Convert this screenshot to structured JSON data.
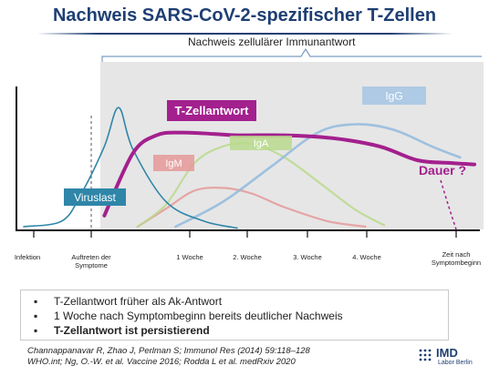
{
  "title": "Nachweis SARS-CoV-2-spezifischer T-Zellen",
  "subtitle": "Nachweis zellulärer Immunantwort",
  "chart_data": {
    "type": "line",
    "x_ticks": [
      "Infektion",
      "Auftreten der Symptome",
      "1 Woche",
      "2. Woche",
      "3. Woche",
      "4. Woche",
      "Zeit nach Symptombeginn"
    ],
    "series": [
      {
        "name": "Viruslast",
        "color": "#2f86a8",
        "points": [
          [
            0,
            2
          ],
          [
            0.8,
            6
          ],
          [
            1.2,
            25
          ],
          [
            1.7,
            60
          ],
          [
            2.0,
            88
          ],
          [
            2.3,
            58
          ],
          [
            3.0,
            20
          ],
          [
            3.8,
            6
          ],
          [
            4.5,
            1
          ]
        ]
      },
      {
        "name": "T-Zellantwort",
        "color": "#a3208e",
        "points": [
          [
            1.7,
            10
          ],
          [
            2.3,
            55
          ],
          [
            2.8,
            68
          ],
          [
            3.3,
            70
          ],
          [
            4.0,
            69
          ],
          [
            4.5,
            68
          ],
          [
            5.5,
            68
          ],
          [
            6.5,
            66
          ],
          [
            7.5,
            60
          ],
          [
            8.3,
            50
          ],
          [
            9.0,
            48
          ],
          [
            9.5,
            47
          ]
        ]
      },
      {
        "name": "IgM",
        "color": "#e59898",
        "points": [
          [
            2.4,
            2
          ],
          [
            3.0,
            15
          ],
          [
            3.6,
            28
          ],
          [
            4.2,
            30
          ],
          [
            4.8,
            26
          ],
          [
            5.5,
            16
          ],
          [
            6.4,
            6
          ],
          [
            7.2,
            2
          ]
        ]
      },
      {
        "name": "IgA",
        "color": "#b9d98c",
        "points": [
          [
            2.4,
            2
          ],
          [
            3.0,
            18
          ],
          [
            3.6,
            48
          ],
          [
            4.2,
            60
          ],
          [
            4.8,
            62
          ],
          [
            5.5,
            52
          ],
          [
            6.3,
            32
          ],
          [
            7.0,
            14
          ],
          [
            7.6,
            3
          ]
        ]
      },
      {
        "name": "IgG",
        "color": "#90b8dd",
        "points": [
          [
            3.2,
            2
          ],
          [
            4.2,
            20
          ],
          [
            5.2,
            45
          ],
          [
            6.2,
            70
          ],
          [
            7.0,
            76
          ],
          [
            7.8,
            72
          ],
          [
            8.6,
            60
          ],
          [
            9.2,
            52
          ]
        ]
      }
    ],
    "series_labels": [
      "Viruslast",
      "T-Zellantwort",
      "IgM",
      "IgA",
      "IgG"
    ],
    "annotation": "Dauer ?",
    "grid": false
  },
  "bullets": [
    "T-Zellantwort früher als Ak-Antwort",
    "1 Woche nach Symptombeginn bereits deutlicher Nachweis",
    "T-Zellantwort ist persistierend"
  ],
  "references": [
    "Channappanavar  R,  Zhao  J, Perlman S;  Immunol Res (2014) 59:118–128",
    "WHO.int;  Ng, O.-W. et al. Vaccine 2016; Rodda L et al. medRxiv 2020"
  ],
  "logo": {
    "name": "IMD",
    "sub": "Labor Berlin"
  },
  "colors": {
    "title": "#1e3f73",
    "tcell": "#a3208e",
    "virus": "#2f86a8",
    "igm": "#e59898",
    "iga": "#b9d98c",
    "igg": "#90b8dd",
    "panel": "#e6e6e6"
  }
}
